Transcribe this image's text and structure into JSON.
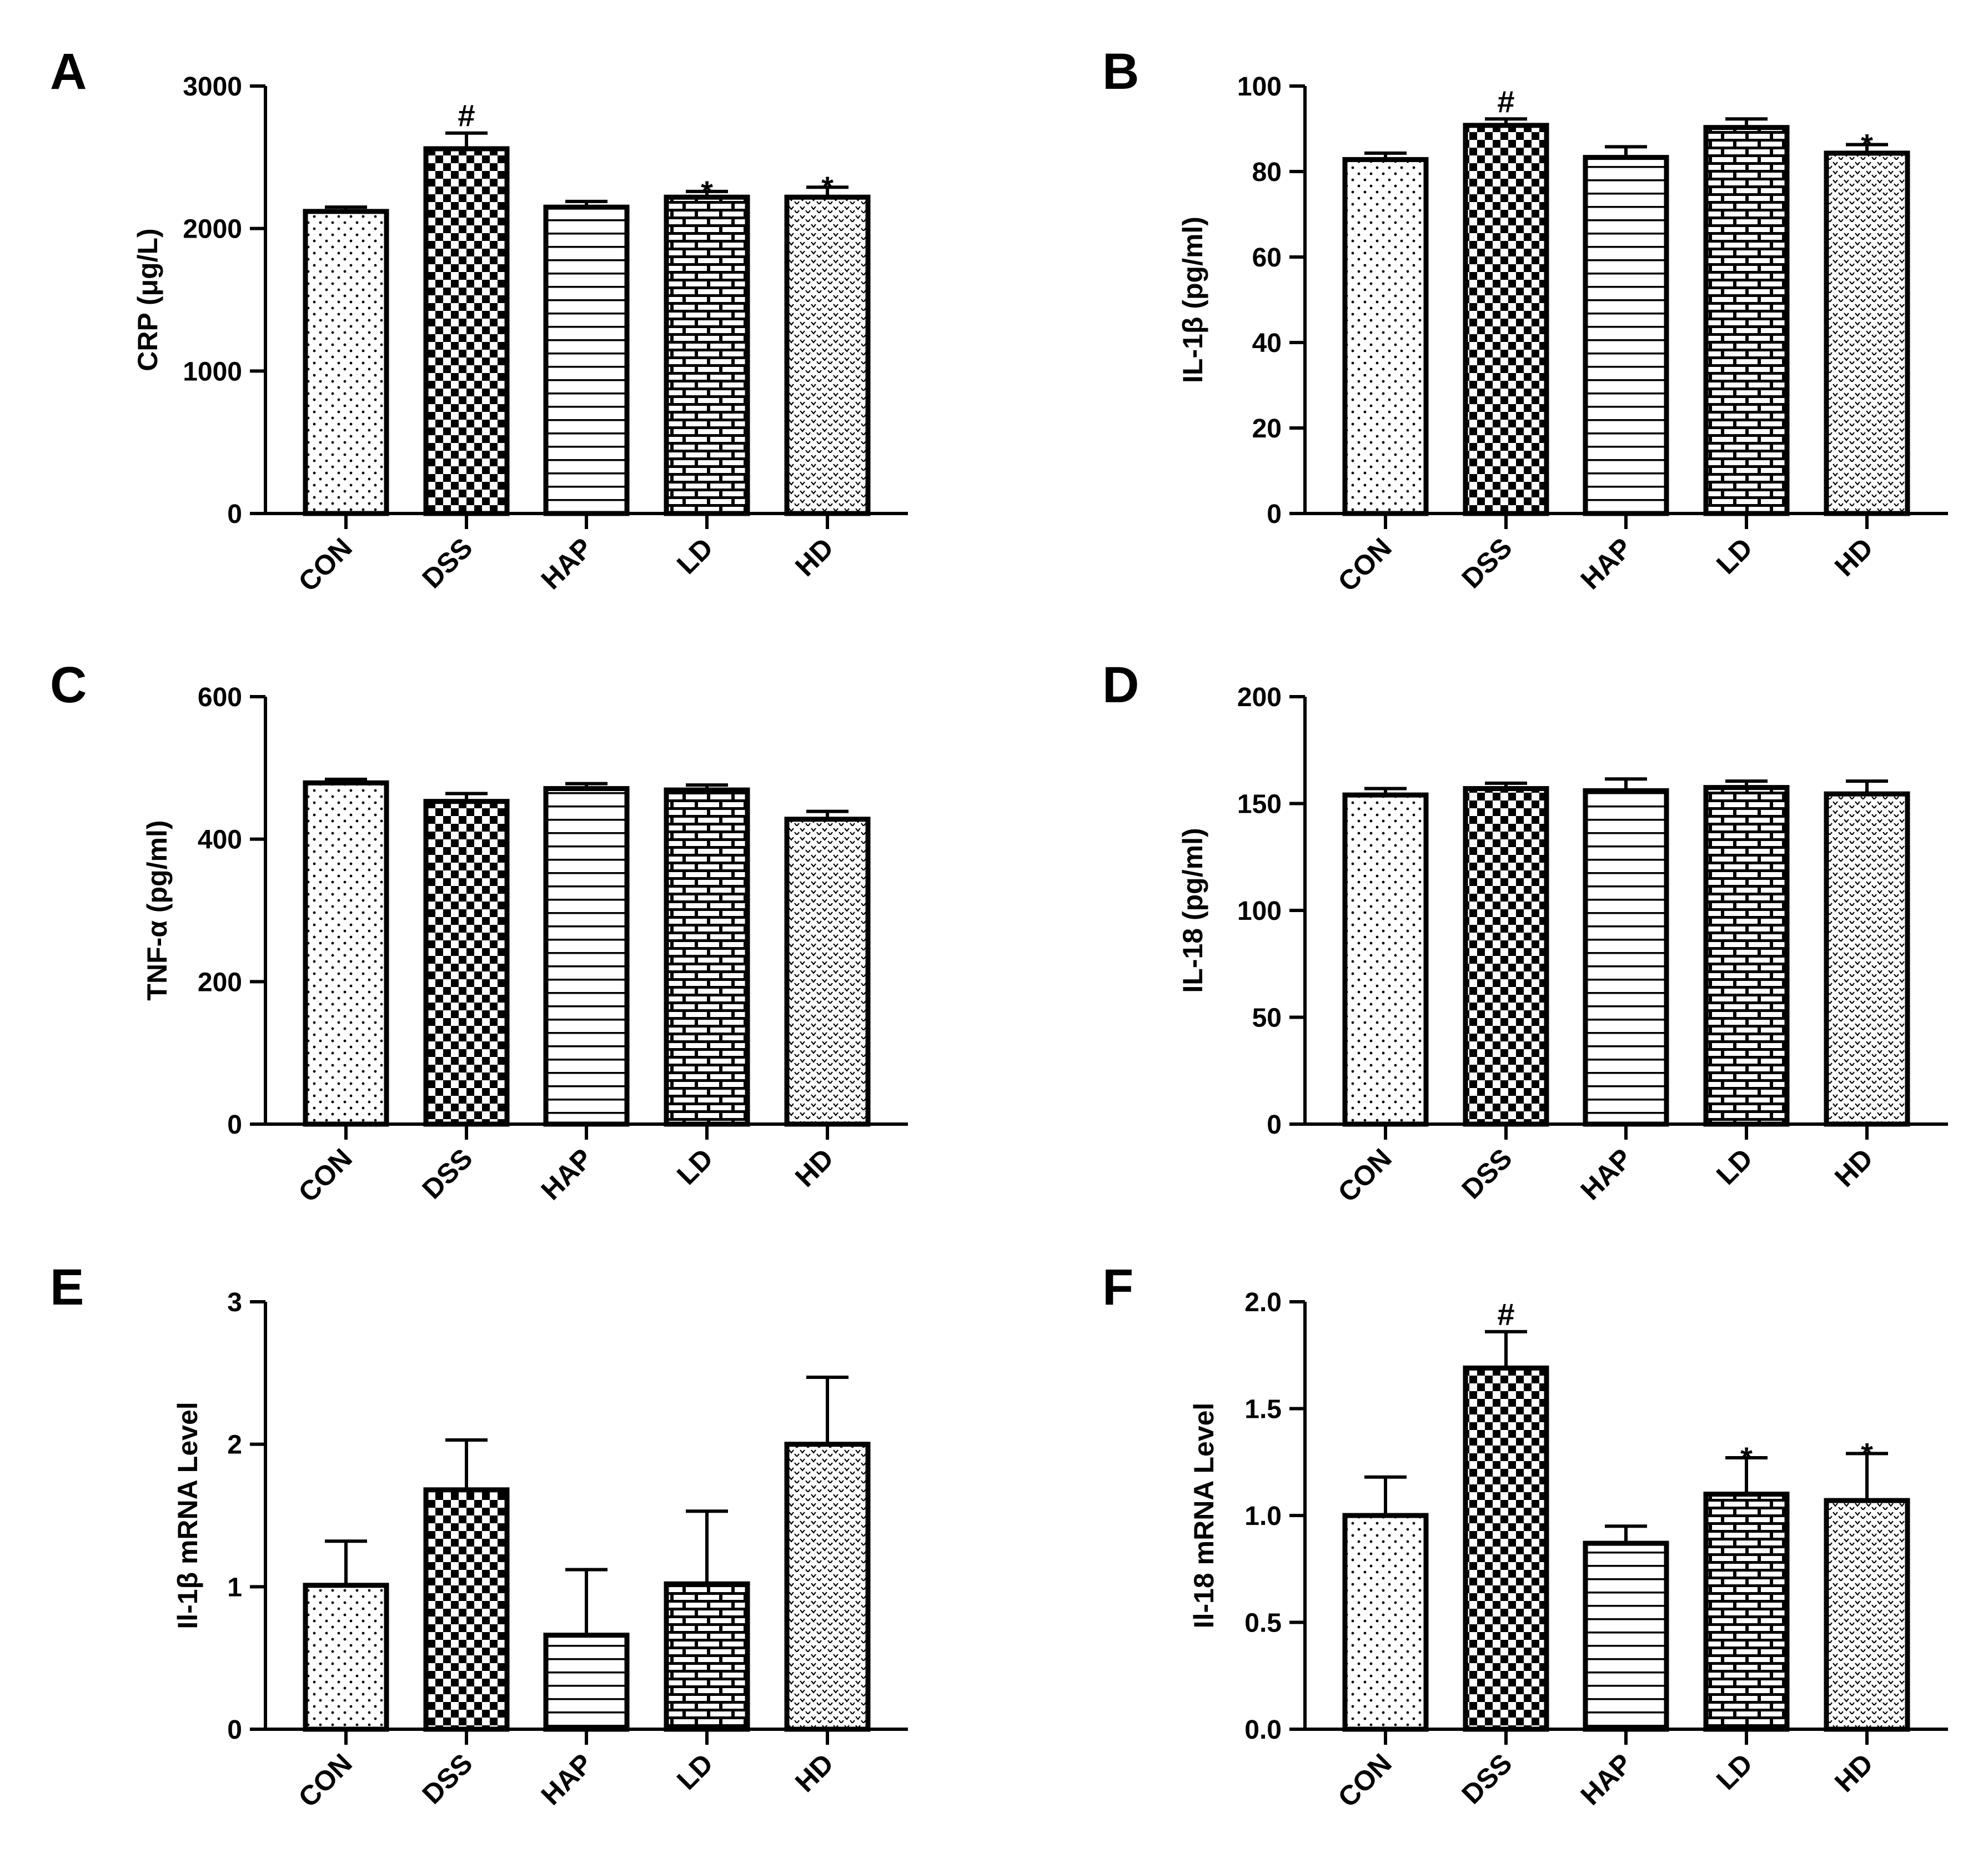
{
  "colors": {
    "ink": "#000000",
    "background": "#ffffff"
  },
  "patterns": [
    "dots",
    "checker",
    "hlines",
    "bricks",
    "wavy"
  ],
  "chart_data": [
    {
      "type": "bar",
      "panel": "A",
      "ylabel": "CRP (μg/L)",
      "categories": [
        "CON",
        "DSS",
        "HAP",
        "LD",
        "HD"
      ],
      "values": [
        2120,
        2560,
        2150,
        2220,
        2220
      ],
      "errors": [
        30,
        110,
        40,
        40,
        70
      ],
      "marks": [
        "",
        "#",
        "",
        "*",
        "*"
      ],
      "ylim": [
        0,
        3000
      ],
      "yticks": [
        0,
        1000,
        2000,
        3000
      ],
      "ytick_labels": [
        "0",
        "1000",
        "2000",
        "3000"
      ]
    },
    {
      "type": "bar",
      "panel": "B",
      "ylabel": "IL-1β (pg/ml)",
      "categories": [
        "CON",
        "DSS",
        "HAP",
        "LD",
        "HD"
      ],
      "values": [
        82.8,
        90.8,
        83.3,
        90.3,
        84.3
      ],
      "errors": [
        1.5,
        1.5,
        2.5,
        2.0,
        2.0
      ],
      "marks": [
        "",
        "#",
        "",
        "",
        "*"
      ],
      "ylim": [
        0,
        100
      ],
      "yticks": [
        0,
        20,
        40,
        60,
        80,
        100
      ],
      "ytick_labels": [
        "0",
        "20",
        "40",
        "60",
        "80",
        "100"
      ]
    },
    {
      "type": "bar",
      "panel": "C",
      "ylabel": "TNF-α (pg/ml)",
      "categories": [
        "CON",
        "DSS",
        "HAP",
        "LD",
        "HD"
      ],
      "values": [
        479,
        453,
        471,
        469,
        428
      ],
      "errors": [
        5,
        11,
        7,
        7,
        11
      ],
      "marks": [
        "",
        "",
        "",
        "",
        ""
      ],
      "ylim": [
        0,
        600
      ],
      "yticks": [
        0,
        200,
        400,
        600
      ],
      "ytick_labels": [
        "0",
        "200",
        "400",
        "600"
      ]
    },
    {
      "type": "bar",
      "panel": "D",
      "ylabel": "IL-18 (pg/ml)",
      "categories": [
        "CON",
        "DSS",
        "HAP",
        "LD",
        "HD"
      ],
      "values": [
        154,
        157,
        156,
        157.5,
        154.5
      ],
      "errors": [
        3,
        2.5,
        5.5,
        3,
        6
      ],
      "marks": [
        "",
        "",
        "",
        "",
        ""
      ],
      "ylim": [
        0,
        200
      ],
      "yticks": [
        0,
        50,
        100,
        150,
        200
      ],
      "ytick_labels": [
        "0",
        "50",
        "100",
        "150",
        "200"
      ]
    },
    {
      "type": "bar",
      "panel": "E",
      "ylabel": "Il-1β mRNA Level",
      "categories": [
        "CON",
        "DSS",
        "HAP",
        "LD",
        "HD"
      ],
      "values": [
        1.01,
        1.68,
        0.66,
        1.02,
        2.0
      ],
      "errors": [
        0.31,
        0.35,
        0.46,
        0.51,
        0.47
      ],
      "marks": [
        "",
        "",
        "",
        "",
        ""
      ],
      "ylim": [
        0,
        3
      ],
      "yticks": [
        0,
        1,
        2,
        3
      ],
      "ytick_labels": [
        "0",
        "1",
        "2",
        "3"
      ]
    },
    {
      "type": "bar",
      "panel": "F",
      "ylabel": "Il-18 mRNA Level",
      "categories": [
        "CON",
        "DSS",
        "HAP",
        "LD",
        "HD"
      ],
      "values": [
        1.0,
        1.69,
        0.87,
        1.1,
        1.07
      ],
      "errors": [
        0.18,
        0.17,
        0.08,
        0.17,
        0.22
      ],
      "marks": [
        "",
        "#",
        "",
        "*",
        "*"
      ],
      "ylim": [
        0,
        2.0
      ],
      "yticks": [
        0,
        0.5,
        1.0,
        1.5,
        2.0
      ],
      "ytick_labels": [
        "0.0",
        "0.5",
        "1.0",
        "1.5",
        "2.0"
      ]
    }
  ]
}
